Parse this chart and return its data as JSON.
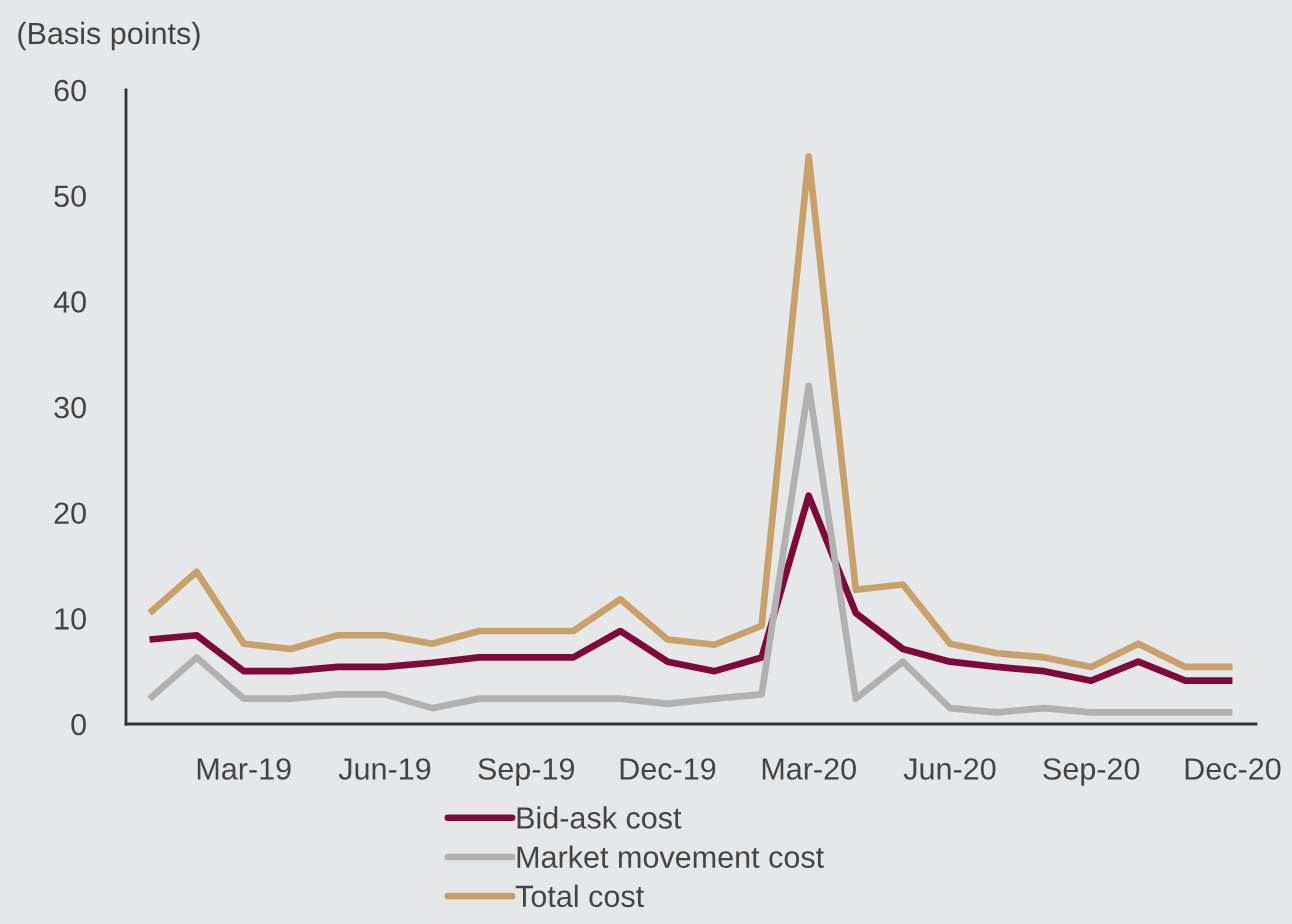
{
  "chart_data": {
    "type": "line",
    "ylabel": "(Basis points)",
    "categories": [
      null,
      null,
      "Mar-19",
      null,
      null,
      "Jun-19",
      null,
      null,
      "Sep-19",
      null,
      null,
      "Dec-19",
      null,
      null,
      "Mar-20",
      null,
      null,
      "Jun-20",
      null,
      null,
      "Sep-20",
      null,
      null,
      "Dec-20"
    ],
    "series": [
      {
        "name": "Bid-ask cost",
        "color": "#7d0a3b",
        "values": [
          8.0,
          8.4,
          5.0,
          5.0,
          5.4,
          5.4,
          5.8,
          6.3,
          6.3,
          6.3,
          8.8,
          5.9,
          5.0,
          6.3,
          21.6,
          10.5,
          7.1,
          5.9,
          5.4,
          5.0,
          4.1,
          5.9,
          4.1,
          4.1
        ]
      },
      {
        "name": "Market movement cost",
        "color": "#b1b1b1",
        "values": [
          2.4,
          6.3,
          2.4,
          2.4,
          2.8,
          2.8,
          1.5,
          2.4,
          2.4,
          2.4,
          2.4,
          1.9,
          2.4,
          2.8,
          32.0,
          2.4,
          5.9,
          1.5,
          1.1,
          1.5,
          1.1,
          1.1,
          1.1,
          1.1
        ]
      },
      {
        "name": "Total cost",
        "color": "#c8a06a",
        "values": [
          10.5,
          14.4,
          7.6,
          7.1,
          8.4,
          8.4,
          7.6,
          8.8,
          8.8,
          8.8,
          11.8,
          8.0,
          7.5,
          9.3,
          53.7,
          12.7,
          13.2,
          7.6,
          6.7,
          6.3,
          5.4,
          7.6,
          5.4,
          5.4
        ]
      }
    ],
    "ylim": [
      0,
      60
    ],
    "yticks": [
      0,
      10,
      20,
      30,
      40,
      50,
      60
    ],
    "legend": "bottom",
    "line_style": "solid"
  }
}
